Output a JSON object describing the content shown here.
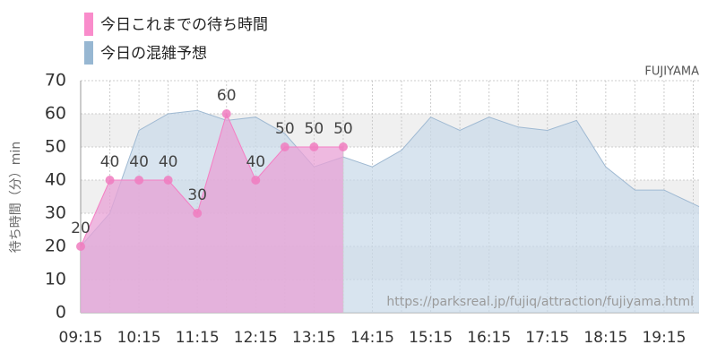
{
  "chart_data": {
    "type": "area",
    "legend": [
      "今日これまでの待ち時間",
      "今日の混雑予想"
    ],
    "attraction": "FUJIYAMA",
    "ylabel": "待ち時間（分）min",
    "watermark": "https://parksreal.jp/fujiq/attraction/fujiyama.html",
    "xlim": [
      "09:15",
      "19:51"
    ],
    "xticks": [
      "09:15",
      "10:15",
      "11:15",
      "12:15",
      "13:15",
      "14:15",
      "15:15",
      "16:15",
      "17:15",
      "18:15",
      "19:15"
    ],
    "ylim": [
      0,
      70
    ],
    "yticks": [
      0,
      10,
      20,
      30,
      40,
      50,
      60,
      70
    ],
    "bands": true,
    "series": [
      {
        "name": "今日これまでの待ち時間",
        "color": "#f57ec3",
        "fill": "#e8a2d6",
        "x": [
          "09:15",
          "09:45",
          "10:15",
          "10:45",
          "11:15",
          "11:45",
          "12:15",
          "12:45",
          "13:15",
          "13:45"
        ],
        "values": [
          20,
          40,
          40,
          40,
          30,
          60,
          40,
          50,
          50,
          50
        ]
      },
      {
        "name": "今日の混雑予想",
        "color": "#9fb9d2",
        "fill": "#c7d8e8",
        "x": [
          "09:15",
          "09:45",
          "10:15",
          "10:45",
          "11:15",
          "11:45",
          "12:15",
          "12:45",
          "13:15",
          "13:45",
          "14:15",
          "14:45",
          "15:15",
          "15:45",
          "16:15",
          "16:45",
          "17:15",
          "17:45",
          "18:15",
          "18:45",
          "19:15",
          "19:51"
        ],
        "values": [
          20,
          30,
          55,
          60,
          61,
          58,
          59,
          54,
          44,
          47,
          44,
          49,
          59,
          55,
          59,
          56,
          55,
          58,
          44,
          37,
          37,
          32
        ]
      }
    ]
  }
}
